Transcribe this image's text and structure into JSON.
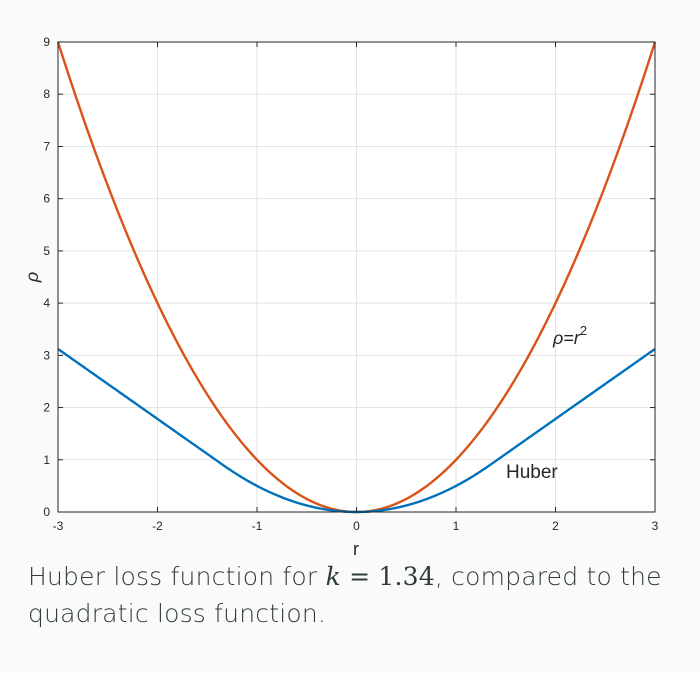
{
  "chart_data": {
    "type": "line",
    "xlabel": "r",
    "ylabel": "ρ",
    "xlim": [
      -3,
      3
    ],
    "ylim": [
      0,
      9
    ],
    "xticks": [
      -3,
      -2,
      -1,
      0,
      1,
      2,
      3
    ],
    "yticks": [
      0,
      1,
      2,
      3,
      4,
      5,
      6,
      7,
      8,
      9
    ],
    "grid": true,
    "k": 1.34,
    "series": [
      {
        "name": "ρ=r²",
        "function": "quadratic",
        "color": "#d95319"
      },
      {
        "name": "Huber",
        "function": "huber",
        "color": "#0072bd"
      }
    ],
    "annotations": {
      "quadratic_label_prefix": "ρ=r",
      "quadratic_label_sup": "2",
      "huber_label": "Huber"
    }
  },
  "caption": {
    "before": "Huber loss function for ",
    "math_var": "k",
    "math_eq": " = ",
    "math_val": "1.34",
    "after": ", compared to the quadratic loss function."
  }
}
